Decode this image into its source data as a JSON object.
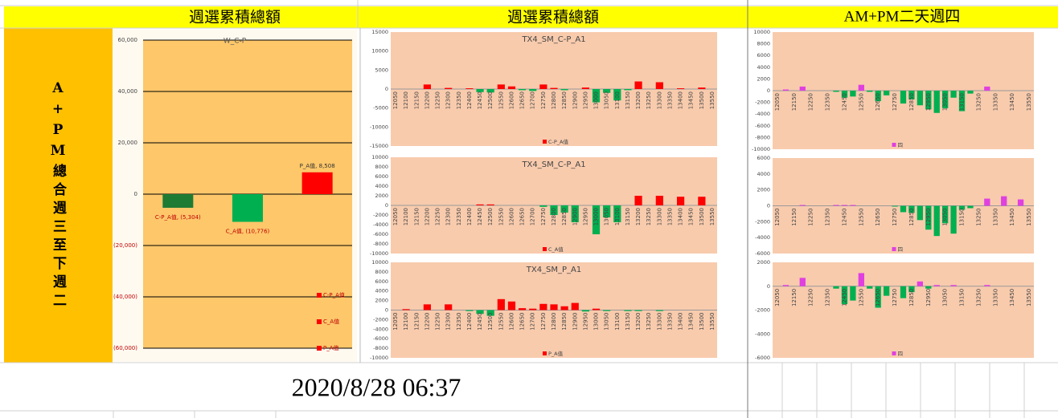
{
  "headers": [
    "週選累積總額",
    "週選累積總額",
    "AM+PM二天週四"
  ],
  "side_label": "A+PM總合週三至下週二",
  "timestamp": "2020/8/28 06:37",
  "chart_data": [
    {
      "type": "bar",
      "title": "W_C-P",
      "ylim": [
        -60000,
        60000
      ],
      "yticks": [
        {
          "value": 60000,
          "label": "60,000"
        },
        {
          "value": 40000,
          "label": "40,000"
        },
        {
          "value": 20000,
          "label": "20,000"
        },
        0,
        {
          "value": -20000,
          "label": "(20,000)"
        },
        {
          "value": -40000,
          "label": "(40,000)"
        },
        {
          "value": -60000,
          "label": "(60,000)"
        }
      ],
      "grid": true,
      "negative_tick_color": "#c00000",
      "legend": "right",
      "legend_marker_color": "#ff0000",
      "series": [
        {
          "name": "C-P_A值",
          "color": "#1e7b34",
          "values": [
            -5304
          ],
          "value_labels": [
            "C-P_A值, (5,304)"
          ]
        },
        {
          "name": "C_A值",
          "color": "#00b050",
          "values": [
            -10776
          ],
          "value_labels": [
            "C_A值, (10,776)"
          ]
        },
        {
          "name": "P_A值",
          "color": "#ff0000",
          "values": [
            8508
          ],
          "value_labels": [
            "P_A值, 8,508"
          ]
        }
      ]
    },
    {
      "type": "bar",
      "title": "TX4_SM_C-P_A1",
      "positive_color": "#ff0000",
      "negative_color": "#00b050",
      "legend": "bottom",
      "categories": [
        "12050",
        "12100",
        "12150",
        "12200",
        "12250",
        "12300",
        "12350",
        "12400",
        "12450",
        "12500",
        "12550",
        "12600",
        "12650",
        "12700",
        "12750",
        "12800",
        "12850",
        "12900",
        "12950",
        "13000",
        "13050",
        "13100",
        "13150",
        "13200",
        "13250",
        "13300",
        "13350",
        "13400",
        "13450",
        "13500",
        "13550"
      ],
      "ylim": [
        -15000,
        15000
      ],
      "yticks": [
        15000,
        10000,
        5000,
        0,
        -5000,
        -10000,
        -15000
      ],
      "series": [
        {
          "name": "C-P_A值",
          "color": "#ff0000",
          "values": [
            0,
            0,
            0,
            1200,
            0,
            300,
            0,
            200,
            -800,
            -900,
            1200,
            700,
            -300,
            -500,
            1200,
            300,
            -300,
            0,
            400,
            -3500,
            -1000,
            -3000,
            -300,
            2000,
            0,
            1800,
            0,
            200,
            0,
            400,
            0
          ]
        }
      ]
    },
    {
      "type": "bar",
      "title": "TX4_SM_C-P_A1",
      "positive_color": "#ff0000",
      "negative_color": "#00b050",
      "legend": "bottom",
      "categories": [
        "12050",
        "12100",
        "12150",
        "12200",
        "12250",
        "12300",
        "12350",
        "12400",
        "12450",
        "12500",
        "12550",
        "12600",
        "12650",
        "12700",
        "12750",
        "12800",
        "12850",
        "12900",
        "12950",
        "13000",
        "13050",
        "13100",
        "13150",
        "13200",
        "13250",
        "13300",
        "13350",
        "13400",
        "13450",
        "13500",
        "13550"
      ],
      "ylim": [
        -10000,
        10000
      ],
      "yticks": [
        10000,
        8000,
        6000,
        4000,
        2000,
        0,
        -2000,
        -4000,
        -6000,
        -8000,
        -10000
      ],
      "series": [
        {
          "name": "C_A值",
          "color": "#ff0000",
          "values": [
            0,
            0,
            0,
            0,
            0,
            0,
            0,
            0,
            200,
            200,
            0,
            0,
            0,
            0,
            -300,
            -2000,
            -1500,
            -3500,
            0,
            -6000,
            -2500,
            -3500,
            0,
            2000,
            0,
            2000,
            0,
            1800,
            0,
            1800,
            0
          ]
        }
      ]
    },
    {
      "type": "bar",
      "title": "TX4_SM_P_A1",
      "positive_color": "#ff0000",
      "negative_color": "#00b050",
      "legend": "bottom",
      "categories": [
        "12050",
        "12100",
        "12150",
        "12200",
        "12250",
        "12300",
        "12350",
        "12400",
        "12450",
        "12500",
        "12550",
        "12600",
        "12650",
        "12700",
        "12750",
        "12800",
        "12850",
        "12900",
        "12950",
        "13000",
        "13050",
        "13100",
        "13150",
        "13200",
        "13250",
        "13300",
        "13350",
        "13400",
        "13450",
        "13500",
        "13550"
      ],
      "ylim": [
        -10000,
        10000
      ],
      "yticks": [
        10000,
        8000,
        6000,
        4000,
        2000,
        0,
        -2000,
        -4000,
        -6000,
        -8000,
        -10000
      ],
      "series": [
        {
          "name": "P_A值",
          "color": "#ff0000",
          "values": [
            0,
            200,
            0,
            1200,
            0,
            1200,
            0,
            -200,
            -800,
            -1200,
            2300,
            1800,
            400,
            300,
            1300,
            1200,
            800,
            1500,
            -300,
            300,
            -200,
            0,
            -200,
            -200,
            0,
            -200,
            0,
            0,
            0,
            0,
            0
          ]
        }
      ]
    },
    {
      "type": "bar",
      "positive_color": "#e040e0",
      "negative_color": "#00b050",
      "legend": "bottom",
      "categories": [
        "12050",
        null,
        "12150",
        null,
        "12250",
        null,
        "12350",
        null,
        "12450",
        null,
        "12550",
        null,
        "12650",
        null,
        "12750",
        null,
        "12850",
        null,
        "12950",
        null,
        "13050",
        null,
        "13150",
        null,
        "13250",
        null,
        "13350",
        null,
        "13450",
        null,
        "13550"
      ],
      "ylim": [
        -10000,
        10000
      ],
      "yticks": [
        10000,
        8000,
        6000,
        4000,
        2000,
        0,
        -2000,
        -4000,
        -6000,
        -8000,
        -10000
      ],
      "series": [
        {
          "name": "四",
          "color": "#e040e0",
          "values": [
            0,
            200,
            0,
            700,
            0,
            0,
            0,
            -200,
            -1200,
            -1000,
            1000,
            -200,
            -1800,
            -800,
            0,
            -2200,
            -1500,
            -2500,
            -3200,
            -3800,
            -3000,
            -1200,
            -3500,
            -500,
            0,
            700,
            0,
            0,
            0,
            0,
            0
          ]
        }
      ]
    },
    {
      "type": "bar",
      "positive_color": "#e040e0",
      "negative_color": "#00b050",
      "legend": "bottom",
      "categories": [
        "12050",
        null,
        "12150",
        null,
        "12250",
        null,
        "12350",
        null,
        "12450",
        null,
        "12550",
        null,
        "12650",
        null,
        "12750",
        null,
        "12850",
        null,
        "12950",
        null,
        "13050",
        null,
        "13150",
        null,
        "13250",
        null,
        "13350",
        null,
        "13450",
        null,
        "13550"
      ],
      "ylim": [
        -6000,
        6000
      ],
      "yticks": [
        6000,
        4000,
        2000,
        0,
        -2000,
        -4000,
        -6000
      ],
      "series": [
        {
          "name": "四",
          "color": "#e040e0",
          "values": [
            0,
            0,
            0,
            100,
            0,
            0,
            0,
            100,
            100,
            100,
            0,
            0,
            0,
            0,
            -100,
            -800,
            -900,
            -1800,
            -3000,
            -3800,
            -2200,
            -3500,
            -500,
            -300,
            0,
            900,
            0,
            1200,
            0,
            800,
            0
          ]
        }
      ]
    },
    {
      "type": "bar",
      "positive_color": "#e040e0",
      "negative_color": "#00b050",
      "legend": "bottom",
      "categories": [
        "12050",
        null,
        "12150",
        null,
        "12250",
        null,
        "12350",
        null,
        "12450",
        null,
        "12550",
        null,
        "12650",
        null,
        "12750",
        null,
        "12850",
        null,
        "12950",
        null,
        "13050",
        null,
        "13150",
        null,
        "13250",
        null,
        "13350",
        null,
        "13450",
        null,
        "13550"
      ],
      "ylim": [
        -6000,
        2000
      ],
      "yticks": [
        2000,
        0,
        -2000,
        -4000,
        -6000
      ],
      "series": [
        {
          "name": "四",
          "color": "#e040e0",
          "values": [
            0,
            100,
            0,
            700,
            0,
            0,
            0,
            -200,
            -1500,
            -1200,
            1100,
            -200,
            -1800,
            -800,
            0,
            -1000,
            -500,
            400,
            -200,
            100,
            0,
            100,
            0,
            0,
            0,
            100,
            0,
            0,
            0,
            0,
            0
          ]
        }
      ]
    }
  ]
}
